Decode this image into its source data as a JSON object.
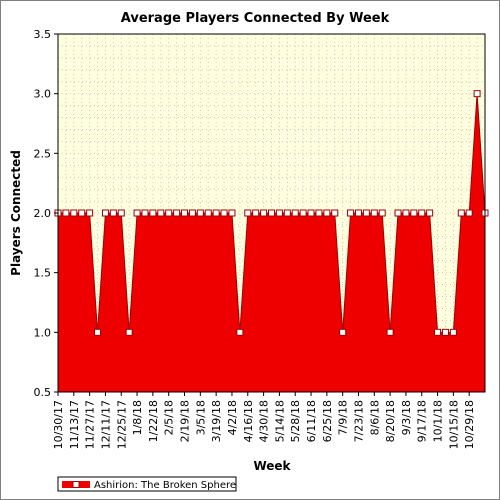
{
  "chart_data": {
    "type": "area",
    "title": "Average Players Connected By Week",
    "xlabel": "Week",
    "ylabel": "Players Connected",
    "ylim": [
      0.5,
      3.5
    ],
    "yticks": [
      "0.5",
      "1.0",
      "1.5",
      "2.0",
      "2.5",
      "3.0",
      "3.5"
    ],
    "xtick_labels": [
      "10/30/17",
      "11/13/17",
      "11/27/17",
      "12/11/17",
      "12/25/17",
      "1/8/18",
      "1/22/18",
      "2/5/18",
      "2/19/18",
      "3/5/18",
      "3/19/18",
      "4/2/18",
      "4/16/18",
      "4/30/18",
      "5/14/18",
      "5/28/18",
      "6/11/18",
      "6/25/18",
      "7/9/18",
      "7/23/18",
      "8/6/18",
      "8/20/18",
      "9/3/18",
      "9/17/18",
      "10/1/18",
      "10/15/18",
      "10/29/18"
    ],
    "grid": true,
    "legend_position": "bottom-left",
    "series": [
      {
        "name": "Ashirion: The Broken Sphere",
        "color": "#ff0000",
        "values": [
          2,
          2,
          2,
          2,
          2,
          1,
          2,
          2,
          2,
          1,
          2,
          2,
          2,
          2,
          2,
          2,
          2,
          2,
          2,
          2,
          2,
          2,
          2,
          1,
          2,
          2,
          2,
          2,
          2,
          2,
          2,
          2,
          2,
          2,
          2,
          2,
          1,
          2,
          2,
          2,
          2,
          2,
          1,
          2,
          2,
          2,
          2,
          2,
          1,
          1,
          1,
          2,
          2,
          3,
          2
        ]
      }
    ]
  },
  "colors": {
    "plot_background": "#ffffe0",
    "area_fill": "#ee0000",
    "grid": "#c8c8c8",
    "marker_fill": "#ffffff",
    "marker_stroke": "#a00000"
  }
}
